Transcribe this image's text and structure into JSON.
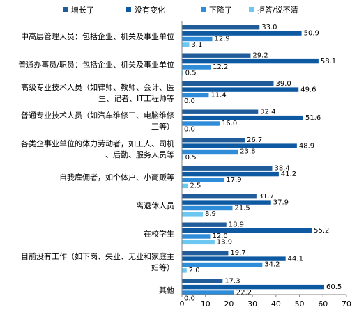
{
  "chart_data": {
    "type": "bar",
    "orientation": "horizontal",
    "xlim": [
      0,
      70
    ],
    "x_ticks": [
      "0",
      "10",
      "20",
      "30",
      "40",
      "50",
      "60",
      "70"
    ],
    "grid": false,
    "legend_position": "top",
    "categories": [
      [
        "中高层管理人员：包括企业、机关及事业单位"
      ],
      [
        "普通办事员/职员：包括企业、机关及事业单位"
      ],
      [
        "高级专业技术人员（如律师、教师、会计、医",
        "生、记者、IT工程师等"
      ],
      [
        "普通专业技术人员（如汽车维修工、电脑维修",
        "工等）"
      ],
      [
        "各类企事业单位的体力劳动者，如工人、司机",
        "、后勤、服务人员等"
      ],
      [
        "自我雇佣者，如个体户、小商贩等"
      ],
      [
        "离退休人员"
      ],
      [
        "在校学生"
      ],
      [
        "目前没有工作（如下岗、失业、无业和家庭主",
        "妇等）"
      ],
      [
        "其他"
      ]
    ],
    "series": [
      {
        "name": "增长了",
        "color": "#1F5C99",
        "values": [
          33.0,
          29.2,
          39.0,
          32.4,
          26.7,
          38.4,
          31.7,
          18.9,
          19.7,
          17.3
        ]
      },
      {
        "name": "没有变化",
        "color": "#0E5AA2",
        "values": [
          50.9,
          58.1,
          49.6,
          51.6,
          48.9,
          41.2,
          37.9,
          55.2,
          44.1,
          60.5
        ]
      },
      {
        "name": "下降了",
        "color": "#2E8CD9",
        "values": [
          12.9,
          12.2,
          11.4,
          16.0,
          23.8,
          17.9,
          21.5,
          12.0,
          34.2,
          22.2
        ]
      },
      {
        "name": "拒答/说不清",
        "color": "#6CC8F0",
        "values": [
          3.1,
          0.5,
          0.0,
          0.0,
          0.5,
          2.5,
          8.9,
          13.9,
          2.0,
          0.0
        ]
      }
    ]
  }
}
